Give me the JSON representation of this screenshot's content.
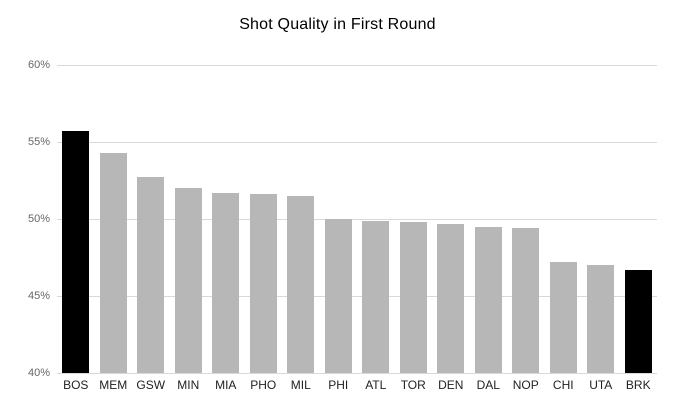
{
  "chart_data": {
    "type": "bar",
    "title": "Shot Quality in First Round",
    "xlabel": "",
    "ylabel": "",
    "categories": [
      "BOS",
      "MEM",
      "GSW",
      "MIN",
      "MIA",
      "PHO",
      "MIL",
      "PHI",
      "ATL",
      "TOR",
      "DEN",
      "DAL",
      "NOP",
      "CHI",
      "UTA",
      "BRK"
    ],
    "values": [
      55.7,
      54.3,
      52.7,
      52.0,
      51.7,
      51.6,
      51.5,
      50.0,
      49.9,
      49.8,
      49.7,
      49.5,
      49.4,
      47.2,
      47.0,
      46.7
    ],
    "value_unit": "%",
    "ylim": [
      40,
      60
    ],
    "y_ticks": [
      60,
      55,
      50,
      45,
      40
    ],
    "y_tick_labels": [
      "60%",
      "55%",
      "50%",
      "45%",
      "40%"
    ],
    "grid": true,
    "legend_position": "none",
    "highlighted_categories": [
      "BOS",
      "BRK"
    ],
    "colors": {
      "background": "#ffffff",
      "bar_default": "#b7b7b7",
      "bar_highlight": "#000000",
      "gridline": "#d9d9d9",
      "title_text": "#000000",
      "y_tick_text": "#666666",
      "x_tick_text": "#222222"
    }
  }
}
